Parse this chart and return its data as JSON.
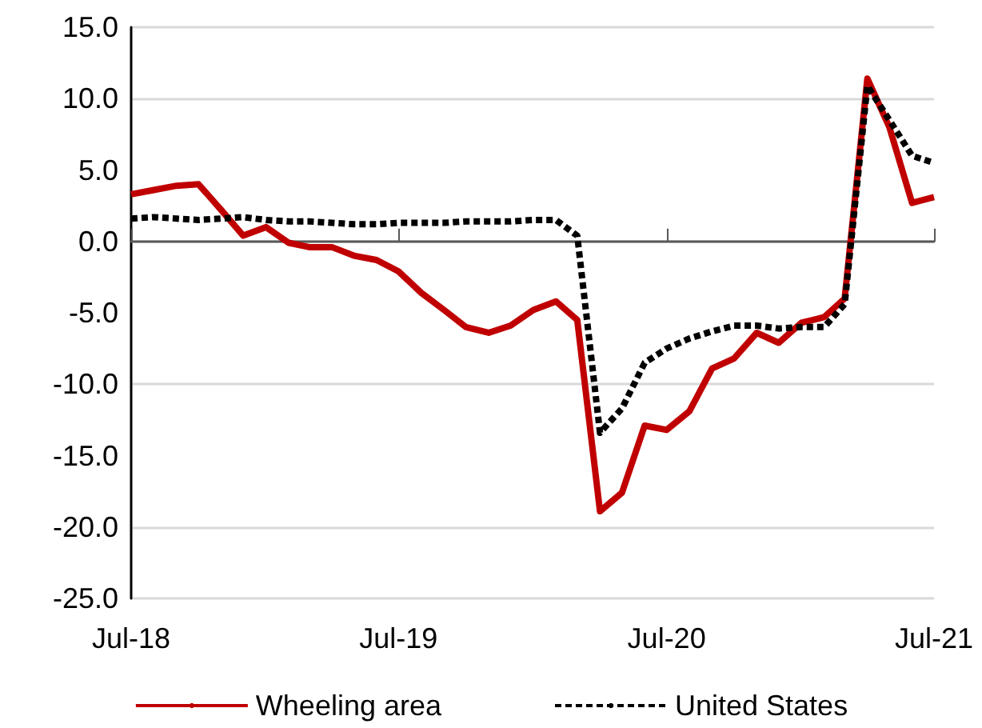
{
  "chart_data": {
    "type": "line",
    "x": [
      "2018-07",
      "2018-08",
      "2018-09",
      "2018-10",
      "2018-11",
      "2018-12",
      "2019-01",
      "2019-02",
      "2019-03",
      "2019-04",
      "2019-05",
      "2019-06",
      "2019-07",
      "2019-08",
      "2019-09",
      "2019-10",
      "2019-11",
      "2019-12",
      "2020-01",
      "2020-02",
      "2020-03",
      "2020-04",
      "2020-05",
      "2020-06",
      "2020-07",
      "2020-08",
      "2020-09",
      "2020-10",
      "2020-11",
      "2020-12",
      "2021-01",
      "2021-02",
      "2021-03",
      "2021-04",
      "2021-05",
      "2021-06",
      "2021-07"
    ],
    "series": [
      {
        "name": "Wheeling area",
        "color": "#c00000",
        "line_style": "solid",
        "values": [
          3.3,
          3.6,
          3.9,
          4.0,
          2.2,
          0.4,
          1.0,
          -0.1,
          -0.4,
          -0.4,
          -1.0,
          -1.3,
          -2.1,
          -3.6,
          -4.8,
          -6.0,
          -6.4,
          -5.9,
          -4.8,
          -4.2,
          -5.5,
          -18.9,
          -17.6,
          -12.9,
          -13.2,
          -11.9,
          -8.9,
          -8.2,
          -6.4,
          -7.1,
          -5.7,
          -5.3,
          -4.0,
          11.4,
          8.0,
          2.7,
          3.1
        ]
      },
      {
        "name": "United States",
        "color": "#000000",
        "line_style": "dashed",
        "values": [
          1.6,
          1.7,
          1.6,
          1.5,
          1.6,
          1.7,
          1.5,
          1.4,
          1.4,
          1.3,
          1.2,
          1.2,
          1.3,
          1.3,
          1.3,
          1.4,
          1.4,
          1.4,
          1.5,
          1.5,
          0.4,
          -13.4,
          -11.7,
          -8.5,
          -7.5,
          -6.8,
          -6.3,
          -5.9,
          -5.9,
          -6.1,
          -6.0,
          -6.0,
          -4.4,
          10.9,
          8.5,
          6.0,
          5.5
        ]
      }
    ],
    "xlim": [
      "2018-07",
      "2021-07"
    ],
    "xticks": [
      {
        "value": "2018-07",
        "label": "Jul-18"
      },
      {
        "value": "2019-07",
        "label": "Jul-19"
      },
      {
        "value": "2020-07",
        "label": "Jul-20"
      },
      {
        "value": "2021-07",
        "label": "Jul-21"
      }
    ],
    "ylim": [
      -25,
      15
    ],
    "yticks": [
      {
        "value": -25,
        "label": "-25.0"
      },
      {
        "value": -20,
        "label": "-20.0"
      },
      {
        "value": -15,
        "label": "-15.0"
      },
      {
        "value": -10,
        "label": "-10.0"
      },
      {
        "value": -5,
        "label": "-5.0"
      },
      {
        "value": 0,
        "label": "0.0"
      },
      {
        "value": 5,
        "label": "5.0"
      },
      {
        "value": 10,
        "label": "10.0"
      },
      {
        "value": 15,
        "label": "15.0"
      }
    ],
    "grid": "y",
    "legend": "bottom",
    "marker": "none"
  }
}
